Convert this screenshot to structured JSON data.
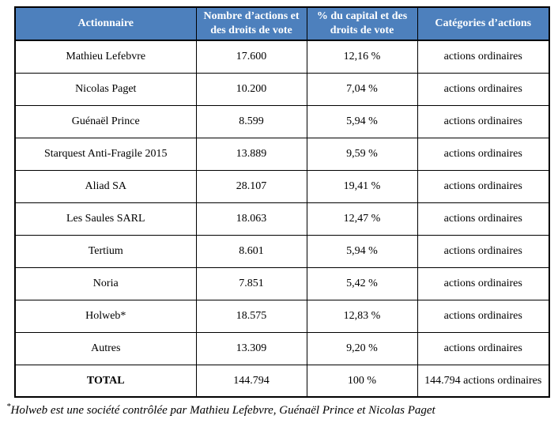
{
  "table": {
    "headers": [
      "Actionnaire",
      "Nombre d’actions et\ndes droits de vote",
      "% du capital et des\ndroits de vote",
      "Catégories d’actions"
    ],
    "rows": [
      {
        "name": "Mathieu Lefebvre",
        "shares": "17.600",
        "percent": "12,16 %",
        "category": "actions ordinaires",
        "total": false
      },
      {
        "name": "Nicolas Paget",
        "shares": "10.200",
        "percent": "7,04 %",
        "category": "actions ordinaires",
        "total": false
      },
      {
        "name": "Guénaël Prince",
        "shares": "8.599",
        "percent": "5,94 %",
        "category": "actions ordinaires",
        "total": false
      },
      {
        "name": "Starquest Anti-Fragile 2015",
        "shares": "13.889",
        "percent": "9,59 %",
        "category": "actions ordinaires",
        "total": false
      },
      {
        "name": "Aliad SA",
        "shares": "28.107",
        "percent": "19,41 %",
        "category": "actions ordinaires",
        "total": false
      },
      {
        "name": "Les Saules SARL",
        "shares": "18.063",
        "percent": "12,47 %",
        "category": "actions ordinaires",
        "total": false
      },
      {
        "name": "Tertium",
        "shares": "8.601",
        "percent": "5,94 %",
        "category": "actions ordinaires",
        "total": false
      },
      {
        "name": "Noria",
        "shares": "7.851",
        "percent": "5,42 %",
        "category": "actions ordinaires",
        "total": false
      },
      {
        "name": "Holweb*",
        "shares": "18.575",
        "percent": "12,83 %",
        "category": "actions ordinaires",
        "total": false
      },
      {
        "name": "Autres",
        "shares": "13.309",
        "percent": "9,20 %",
        "category": "actions ordinaires",
        "total": false
      },
      {
        "name": "TOTAL",
        "shares": "144.794",
        "percent": "100 %",
        "category": "144.794 actions ordinaires",
        "total": true
      }
    ]
  },
  "footnote": {
    "marker": "*",
    "text": "Holweb est une société contrôlée par Mathieu Lefebvre, Guénaël Prince et Nicolas Paget"
  },
  "colors": {
    "header_bg": "#4d80bd",
    "header_text": "#ffffff",
    "border": "#000000",
    "body_text": "#000000"
  }
}
